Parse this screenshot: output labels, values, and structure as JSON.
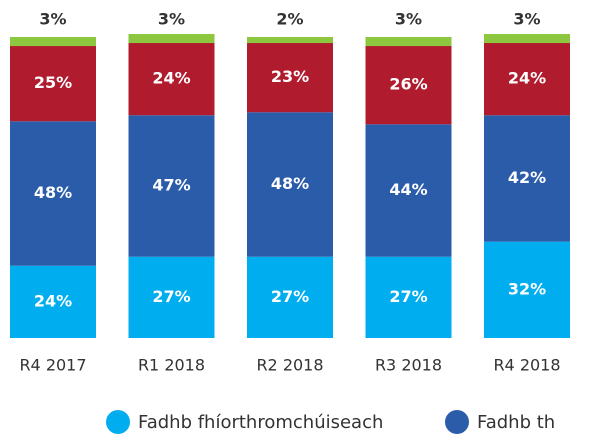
{
  "chart_data": {
    "type": "bar",
    "stacked": true,
    "categories": [
      "R4 2017",
      "R1 2018",
      "R2 2018",
      "R3 2018",
      "R4 2018"
    ],
    "ylim": [
      0,
      100
    ],
    "series": [
      {
        "name": "Fadhb fhíorthromchúiseach",
        "color": "#00aeef",
        "values": [
          24,
          27,
          27,
          27,
          32
        ],
        "value_labels": [
          "24%",
          "27%",
          "27%",
          "27%",
          "32%"
        ]
      },
      {
        "name": "Fadhb th",
        "color": "#2a5caa",
        "values": [
          48,
          47,
          48,
          44,
          42
        ],
        "value_labels": [
          "48%",
          "47%",
          "48%",
          "44%",
          "42%"
        ]
      },
      {
        "color": "#b01c2e",
        "values": [
          25,
          24,
          23,
          26,
          24
        ],
        "value_labels": [
          "25%",
          "24%",
          "23%",
          "26%",
          "24%"
        ]
      },
      {
        "color": "#8dc63f",
        "values": [
          3,
          3,
          2,
          3,
          3
        ],
        "value_labels": [
          "3%",
          "3%",
          "2%",
          "3%",
          "3%"
        ]
      }
    ],
    "legend": "bottom"
  }
}
